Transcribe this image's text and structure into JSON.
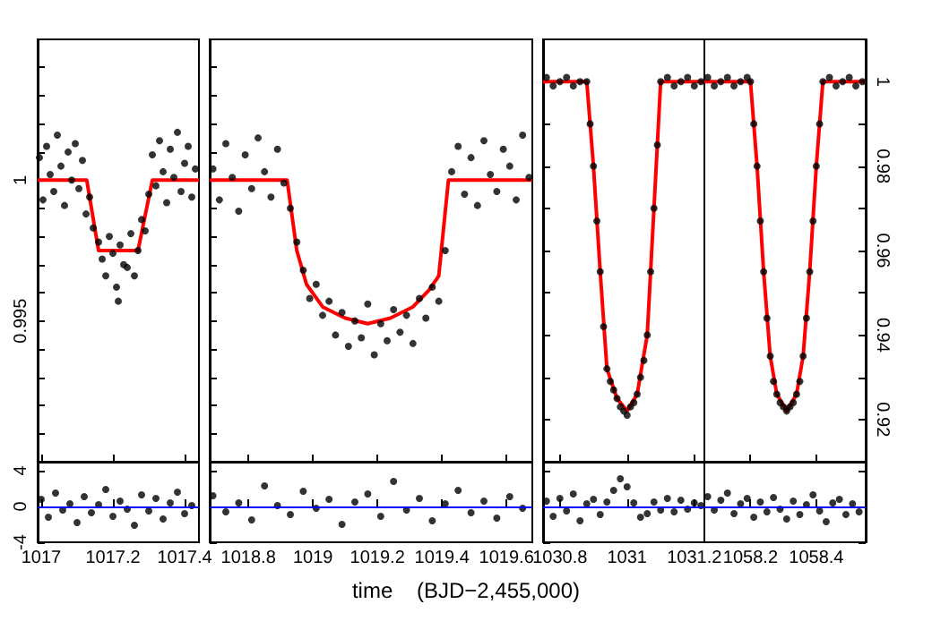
{
  "chart_data": [
    {
      "type": "scatter",
      "marker": "circle",
      "tick_labels": "y",
      "xlim": [
        1016.99,
        1017.44
      ],
      "xticks": [
        1017,
        1017.2,
        1017.4
      ],
      "ylim": [
        0.99,
        1.005
      ],
      "yticks": [
        {
          "value": 0.991,
          "label": null
        },
        {
          "value": 0.992,
          "label": null
        },
        {
          "value": 0.993,
          "label": null
        },
        {
          "value": 0.994,
          "label": null
        },
        0.995,
        {
          "value": 0.996,
          "label": null
        },
        {
          "value": 0.997,
          "label": null
        },
        {
          "value": 0.998,
          "label": null
        },
        {
          "value": 0.999,
          "label": null
        },
        1,
        {
          "value": 1.001,
          "label": null
        },
        {
          "value": 1.002,
          "label": null
        },
        {
          "value": 1.003,
          "label": null
        },
        {
          "value": 1.004,
          "label": null
        }
      ],
      "series": [
        {
          "color": "#000000",
          "x": [
            1016.995,
            1017.005,
            1017.015,
            1017.025,
            1017.035,
            1017.045,
            1017.055,
            1017.065,
            1017.075,
            1017.085,
            1017.095,
            1017.105,
            1017.115,
            1017.125,
            1017.135,
            1017.145,
            1017.16,
            1017.17,
            1017.18,
            1017.19,
            1017.2,
            1017.21,
            1017.215,
            1017.22,
            1017.23,
            1017.24,
            1017.25,
            1017.26,
            1017.27,
            1017.28,
            1017.29,
            1017.3,
            1017.31,
            1017.32,
            1017.33,
            1017.34,
            1017.35,
            1017.36,
            1017.37,
            1017.38,
            1017.39,
            1017.4,
            1017.41,
            1017.42,
            1017.43
          ],
          "values": [
            1.0008,
            0.9993,
            1.0012,
            1.0002,
            0.9996,
            1.0016,
            1.0005,
            0.9991,
            1.001,
            1.0,
            1.0013,
            0.9997,
            1.0007,
            0.9988,
            0.9994,
            0.9983,
            0.9978,
            0.9972,
            0.9966,
            0.998,
            0.9974,
            0.9962,
            0.9957,
            0.9977,
            0.997,
            0.9969,
            0.9981,
            0.9966,
            0.9975,
            0.9986,
            0.9982,
            0.9995,
            1.0009,
            0.9998,
            1.0014,
            1.0003,
            0.9992,
            1.0011,
            1.0001,
            1.0017,
            0.9996,
            1.0006,
            1.0012,
            0.9994,
            1.0004
          ]
        },
        {
          "type": "line",
          "marker": "none",
          "color": "#ff0000",
          "x": [
            1016.99,
            1017.127,
            1017.16,
            1017.27,
            1017.31,
            1017.44
          ],
          "values": [
            1,
            1,
            0.9975,
            0.9975,
            1,
            1
          ]
        }
      ]
    },
    {
      "type": "scatter",
      "marker": "circle",
      "tick_labels": false,
      "xlim": [
        1018.68,
        1019.68
      ],
      "xticks": [
        1018.8,
        1019,
        1019.2,
        1019.4,
        1019.6
      ],
      "ylim": [
        0.99,
        1.005
      ],
      "yticks": [
        {
          "value": 0.991,
          "label": null
        },
        {
          "value": 0.992,
          "label": null
        },
        {
          "value": 0.993,
          "label": null
        },
        {
          "value": 0.994,
          "label": null
        },
        0.995,
        {
          "value": 0.996,
          "label": null
        },
        {
          "value": 0.997,
          "label": null
        },
        {
          "value": 0.998,
          "label": null
        },
        {
          "value": 0.999,
          "label": null
        },
        1,
        {
          "value": 1.001,
          "label": null
        },
        {
          "value": 1.002,
          "label": null
        },
        {
          "value": 1.003,
          "label": null
        },
        {
          "value": 1.004,
          "label": null
        }
      ],
      "series": [
        {
          "color": "#000000",
          "x": [
            1018.69,
            1018.71,
            1018.73,
            1018.75,
            1018.77,
            1018.79,
            1018.81,
            1018.83,
            1018.85,
            1018.87,
            1018.89,
            1018.91,
            1018.93,
            1018.95,
            1018.97,
            1018.99,
            1019.01,
            1019.03,
            1019.05,
            1019.07,
            1019.09,
            1019.11,
            1019.13,
            1019.15,
            1019.17,
            1019.19,
            1019.21,
            1019.23,
            1019.25,
            1019.27,
            1019.29,
            1019.31,
            1019.33,
            1019.35,
            1019.37,
            1019.39,
            1019.41,
            1019.43,
            1019.45,
            1019.47,
            1019.49,
            1019.51,
            1019.53,
            1019.55,
            1019.57,
            1019.59,
            1019.61,
            1019.63,
            1019.65,
            1019.67
          ],
          "values": [
            1.0004,
            0.9993,
            1.0013,
            1.0001,
            0.9989,
            1.0009,
            0.9997,
            1.0015,
            1.0003,
            0.9994,
            1.0011,
            0.9999,
            0.999,
            0.9978,
            0.9968,
            0.9958,
            0.9963,
            0.9952,
            0.9957,
            0.9945,
            0.9953,
            0.9941,
            0.995,
            0.9944,
            0.9956,
            0.9938,
            0.9949,
            0.9943,
            0.9954,
            0.9946,
            0.9952,
            0.9942,
            0.9958,
            0.9951,
            0.9962,
            0.9957,
            0.9975,
            1.0003,
            1.0012,
            0.9995,
            1.0008,
            0.9991,
            1.0014,
            1.0002,
            0.9996,
            1.0011,
            1.0005,
            0.9993,
            1.0016,
            1.0001
          ]
        },
        {
          "type": "line",
          "marker": "none",
          "color": "#ff0000",
          "x": [
            1018.68,
            1018.92,
            1018.95,
            1018.98,
            1019.03,
            1019.1,
            1019.17,
            1019.24,
            1019.31,
            1019.36,
            1019.39,
            1019.42,
            1019.68
          ],
          "values": [
            1,
            1,
            0.9975,
            0.9963,
            0.9955,
            0.9951,
            0.9949,
            0.9951,
            0.9955,
            0.9961,
            0.9966,
            1,
            1
          ]
        }
      ]
    },
    {
      "type": "scatter",
      "marker": "circle",
      "tick_labels": false,
      "xlim": [
        1030.75,
        1031.23
      ],
      "xticks": [
        1030.8,
        1031,
        1031.2
      ],
      "ylim": [
        0.91,
        1.01
      ],
      "yticks": [
        0.92,
        {
          "value": 0.93,
          "label": null
        },
        0.94,
        {
          "value": 0.95,
          "label": null
        },
        0.96,
        {
          "value": 0.97,
          "label": null
        },
        0.98,
        {
          "value": 0.99,
          "label": null
        },
        1
      ],
      "series": [
        {
          "color": "#000000",
          "x": [
            1030.76,
            1030.78,
            1030.8,
            1030.82,
            1030.84,
            1030.86,
            1030.88,
            1030.89,
            1030.9,
            1030.91,
            1030.92,
            1030.93,
            1030.94,
            1030.95,
            1030.96,
            1030.97,
            1030.98,
            1030.99,
            1031.0,
            1031.01,
            1031.02,
            1031.03,
            1031.04,
            1031.05,
            1031.06,
            1031.07,
            1031.08,
            1031.09,
            1031.1,
            1031.12,
            1031.14,
            1031.16,
            1031.18,
            1031.2,
            1031.22
          ],
          "values": [
            1.001,
            0.999,
            1.0,
            1.001,
            0.999,
            1.0,
            1.0,
            0.99,
            0.98,
            0.967,
            0.955,
            0.942,
            0.932,
            0.929,
            0.927,
            0.925,
            0.923,
            0.922,
            0.921,
            0.923,
            0.924,
            0.926,
            0.93,
            0.934,
            0.94,
            0.955,
            0.97,
            0.985,
            1.0,
            1.001,
            0.999,
            1.0,
            1.001,
            0.999,
            1.0
          ]
        },
        {
          "type": "line",
          "marker": "none",
          "color": "#ff0000",
          "x": [
            1030.75,
            1030.88,
            1030.9,
            1030.92,
            1030.94,
            1030.97,
            1031.0,
            1031.03,
            1031.06,
            1031.08,
            1031.1,
            1031.23
          ],
          "values": [
            1,
            1,
            0.98,
            0.955,
            0.932,
            0.925,
            0.922,
            0.926,
            0.94,
            0.97,
            1,
            1
          ]
        }
      ]
    },
    {
      "type": "scatter",
      "marker": "circle",
      "tick_labels": "y",
      "xlim": [
        1058.06,
        1058.55
      ],
      "xticks": [
        1058.2,
        1058.4
      ],
      "ylim": [
        0.91,
        1.01
      ],
      "yticks": [
        0.92,
        {
          "value": 0.93,
          "label": null
        },
        0.94,
        {
          "value": 0.95,
          "label": null
        },
        0.96,
        {
          "value": 0.97,
          "label": null
        },
        0.98,
        {
          "value": 0.99,
          "label": null
        },
        1
      ],
      "series": [
        {
          "color": "#000000",
          "x": [
            1058.07,
            1058.09,
            1058.11,
            1058.13,
            1058.15,
            1058.17,
            1058.19,
            1058.2,
            1058.21,
            1058.22,
            1058.23,
            1058.24,
            1058.25,
            1058.26,
            1058.27,
            1058.28,
            1058.29,
            1058.3,
            1058.31,
            1058.32,
            1058.33,
            1058.34,
            1058.35,
            1058.36,
            1058.37,
            1058.38,
            1058.39,
            1058.4,
            1058.41,
            1058.42,
            1058.44,
            1058.46,
            1058.48,
            1058.5,
            1058.52,
            1058.54
          ],
          "values": [
            1.001,
            0.999,
            1.0,
            1.001,
            0.999,
            1.0,
            1.001,
            1.0,
            0.99,
            0.98,
            0.967,
            0.955,
            0.944,
            0.935,
            0.929,
            0.926,
            0.924,
            0.923,
            0.922,
            0.923,
            0.924,
            0.926,
            0.929,
            0.935,
            0.944,
            0.955,
            0.967,
            0.98,
            0.99,
            1.0,
            1.001,
            0.999,
            1.0,
            1.001,
            0.999,
            1.0
          ]
        },
        {
          "type": "line",
          "marker": "none",
          "color": "#ff0000",
          "x": [
            1058.06,
            1058.2,
            1058.22,
            1058.24,
            1058.26,
            1058.28,
            1058.31,
            1058.34,
            1058.36,
            1058.38,
            1058.4,
            1058.42,
            1058.55
          ],
          "values": [
            1,
            1,
            0.98,
            0.955,
            0.935,
            0.926,
            0.922,
            0.926,
            0.935,
            0.955,
            0.98,
            1,
            1
          ]
        }
      ]
    },
    {
      "type": "scatter",
      "marker": "circle",
      "xlim": [
        1016.99,
        1017.44
      ],
      "xticks": [
        1017,
        1017.2,
        1017.4
      ],
      "ylim": [
        -4,
        5
      ],
      "yticks": [
        -4,
        0,
        4
      ],
      "ref_lines": [
        {
          "axis": "y",
          "value": 0,
          "color": "#0000ff"
        }
      ],
      "series": [
        {
          "color": "#000000",
          "x": [
            1017.0,
            1017.02,
            1017.04,
            1017.06,
            1017.08,
            1017.1,
            1017.12,
            1017.14,
            1017.16,
            1017.18,
            1017.2,
            1017.22,
            1017.24,
            1017.26,
            1017.28,
            1017.3,
            1017.32,
            1017.34,
            1017.36,
            1017.38,
            1017.4,
            1017.42
          ],
          "values": [
            0.8,
            -1.2,
            1.5,
            -0.4,
            0.3,
            -1.8,
            1.1,
            -0.7,
            0.2,
            1.9,
            -1.1,
            0.6,
            -0.3,
            -2.1,
            1.3,
            -0.5,
            0.9,
            -1.4,
            0.4,
            1.6,
            -0.8,
            0.1
          ]
        }
      ]
    },
    {
      "type": "scatter",
      "marker": "circle",
      "tick_labels": "x",
      "xlabel": "time    (BJD−2,455,000)",
      "xlim": [
        1018.68,
        1019.68
      ],
      "xticks": [
        1018.8,
        1019,
        1019.2,
        1019.4,
        1019.6
      ],
      "ylim": [
        -4,
        5
      ],
      "yticks": [
        -4,
        0,
        4
      ],
      "ref_lines": [
        {
          "axis": "y",
          "value": 0,
          "color": "#0000ff"
        }
      ],
      "series": [
        {
          "color": "#000000",
          "x": [
            1018.69,
            1018.73,
            1018.77,
            1018.81,
            1018.85,
            1018.89,
            1018.93,
            1018.97,
            1019.01,
            1019.05,
            1019.09,
            1019.13,
            1019.17,
            1019.21,
            1019.25,
            1019.29,
            1019.33,
            1019.37,
            1019.41,
            1019.45,
            1019.49,
            1019.53,
            1019.57,
            1019.61,
            1019.65
          ],
          "values": [
            1.2,
            -0.6,
            0.4,
            -1.5,
            2.3,
            0.1,
            -0.9,
            1.7,
            -0.2,
            0.8,
            -2.0,
            0.5,
            1.4,
            -1.1,
            2.8,
            -0.4,
            0.9,
            -1.6,
            0.3,
            1.8,
            -0.7,
            0.6,
            -1.3,
            1.1,
            -0.2
          ]
        }
      ]
    },
    {
      "type": "scatter",
      "marker": "circle",
      "tick_labels": "x",
      "xlim": [
        1030.75,
        1031.23
      ],
      "xticks": [
        1030.8,
        1031,
        1031.2
      ],
      "ylim": [
        -4,
        5
      ],
      "yticks": [
        -4,
        0,
        4
      ],
      "ref_lines": [
        {
          "axis": "y",
          "value": 0,
          "color": "#0000ff"
        }
      ],
      "series": [
        {
          "color": "#000000",
          "x": [
            1030.76,
            1030.78,
            1030.8,
            1030.82,
            1030.84,
            1030.86,
            1030.88,
            1030.9,
            1030.92,
            1030.94,
            1030.96,
            1030.98,
            1031.0,
            1031.02,
            1031.04,
            1031.06,
            1031.08,
            1031.1,
            1031.12,
            1031.14,
            1031.16,
            1031.18,
            1031.2,
            1031.22
          ],
          "values": [
            0.6,
            -1.1,
            0.9,
            -0.5,
            1.4,
            -1.6,
            0.3,
            0.8,
            -0.9,
            0.5,
            1.8,
            3.1,
            2.2,
            0.4,
            -1.2,
            -0.8,
            0.5,
            -0.4,
            0.9,
            -0.6,
            0.7,
            -0.3,
            0.4,
            0.1
          ]
        }
      ]
    },
    {
      "type": "scatter",
      "marker": "circle",
      "tick_labels": "x",
      "xlim": [
        1058.06,
        1058.55
      ],
      "xticks": [
        1058.2,
        1058.4
      ],
      "ylim": [
        -4,
        5
      ],
      "yticks": [
        -4,
        0,
        4
      ],
      "ref_lines": [
        {
          "axis": "y",
          "value": 0,
          "color": "#0000ff"
        }
      ],
      "series": [
        {
          "color": "#000000",
          "x": [
            1058.07,
            1058.09,
            1058.11,
            1058.13,
            1058.15,
            1058.17,
            1058.19,
            1058.21,
            1058.23,
            1058.25,
            1058.27,
            1058.29,
            1058.31,
            1058.33,
            1058.35,
            1058.37,
            1058.39,
            1058.41,
            1058.43,
            1058.45,
            1058.47,
            1058.49,
            1058.51,
            1058.53
          ],
          "values": [
            1.1,
            -0.4,
            0.7,
            1.5,
            -0.8,
            0.3,
            0.9,
            -1.2,
            0.5,
            -0.6,
            1.0,
            -0.3,
            -1.4,
            0.6,
            -0.9,
            0.2,
            1.3,
            -0.5,
            -1.7,
            0.4,
            0.8,
            -0.9,
            0.3,
            -0.6
          ]
        }
      ]
    }
  ]
}
